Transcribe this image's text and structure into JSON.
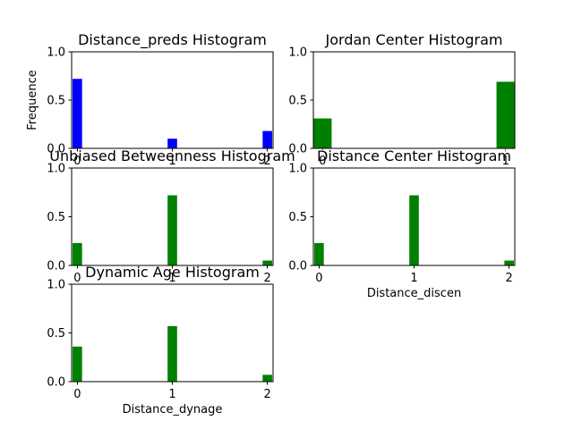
{
  "chart_data": [
    {
      "type": "bar",
      "title": "Distance_preds Histogram",
      "xlabel": "",
      "ylabel": "Frequence",
      "x_ticks": [
        0,
        1,
        2
      ],
      "xlim": [
        -0.06,
        2.06
      ],
      "y_ticks": [
        0.0,
        0.5,
        1.0
      ],
      "ylim": [
        0,
        1
      ],
      "color": "#0000ff",
      "bar_width": 0.1,
      "bars": [
        {
          "x": 0,
          "value": 0.72
        },
        {
          "x": 1,
          "value": 0.1
        },
        {
          "x": 2,
          "value": 0.18
        }
      ]
    },
    {
      "type": "bar",
      "title": "Jordan Center Histogram",
      "xlabel": "",
      "ylabel": "",
      "x_ticks": [
        0,
        1
      ],
      "xlim": [
        -0.05,
        1.05
      ],
      "y_ticks": [
        0.0,
        0.5,
        1.0
      ],
      "ylim": [
        0,
        1
      ],
      "color": "#008000",
      "bar_width": 0.1,
      "bars": [
        {
          "x": 0,
          "value": 0.31
        },
        {
          "x": 1,
          "value": 0.69
        }
      ]
    },
    {
      "type": "bar",
      "title": "Unbiased Betweenness Histogram",
      "xlabel": "",
      "ylabel": "",
      "x_ticks": [
        0,
        1,
        2
      ],
      "xlim": [
        -0.06,
        2.06
      ],
      "y_ticks": [
        0.0,
        0.5,
        1.0
      ],
      "ylim": [
        0,
        1
      ],
      "color": "#008000",
      "bar_width": 0.1,
      "bars": [
        {
          "x": 0,
          "value": 0.23
        },
        {
          "x": 1,
          "value": 0.72
        },
        {
          "x": 2,
          "value": 0.05
        }
      ]
    },
    {
      "type": "bar",
      "title": "Distance Center Histogram",
      "xlabel": "Distance_discen",
      "ylabel": "",
      "x_ticks": [
        0,
        1,
        2
      ],
      "xlim": [
        -0.06,
        2.06
      ],
      "y_ticks": [
        0.0,
        0.5,
        1.0
      ],
      "ylim": [
        0,
        1
      ],
      "color": "#008000",
      "bar_width": 0.1,
      "bars": [
        {
          "x": 0,
          "value": 0.23
        },
        {
          "x": 1,
          "value": 0.72
        },
        {
          "x": 2,
          "value": 0.05
        }
      ]
    },
    {
      "type": "bar",
      "title": "Dynamic Age Histogram",
      "xlabel": "Distance_dynage",
      "ylabel": "",
      "x_ticks": [
        0,
        1,
        2
      ],
      "xlim": [
        -0.06,
        2.06
      ],
      "y_ticks": [
        0.0,
        0.5,
        1.0
      ],
      "ylim": [
        0,
        1
      ],
      "color": "#008000",
      "bar_width": 0.1,
      "bars": [
        {
          "x": 0,
          "value": 0.36
        },
        {
          "x": 1,
          "value": 0.57
        },
        {
          "x": 2,
          "value": 0.07
        }
      ]
    }
  ]
}
